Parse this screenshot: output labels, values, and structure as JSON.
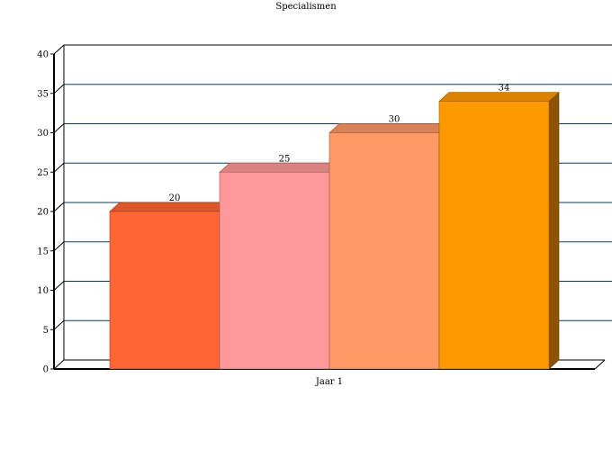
{
  "chart_data": {
    "type": "bar",
    "title": "Specialismen",
    "categories": [
      "Jaar 1"
    ],
    "series": [
      {
        "values": [
          20
        ],
        "color": "#ff6633"
      },
      {
        "values": [
          25
        ],
        "color": "#ff9999"
      },
      {
        "values": [
          30
        ],
        "color": "#ff9966"
      },
      {
        "values": [
          34
        ],
        "color": "#ff9900"
      }
    ],
    "ylim": [
      0,
      40
    ],
    "yticks": [
      0,
      5,
      10,
      15,
      20,
      25,
      30,
      35,
      40
    ],
    "grid": true,
    "gridline_color": "#0b3d66",
    "data_labels": true,
    "three_d": true
  }
}
